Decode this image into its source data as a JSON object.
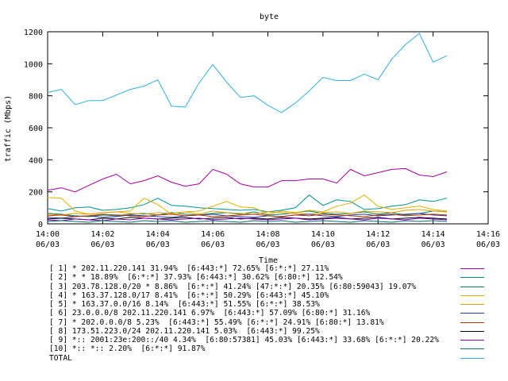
{
  "chart_data": {
    "type": "line",
    "title": "byte",
    "ylabel": "traffic (Mbps)",
    "xlabel": "Time",
    "ylim": [
      0,
      1200
    ],
    "xlim": [
      "2012-06-03 14:00",
      "2012-06-03 14:16"
    ],
    "y_ticks": [
      "0",
      "200",
      "400",
      "600",
      "800",
      "1000",
      "1200"
    ],
    "x_ticks": [
      {
        "time": "14:00",
        "date": "06/03"
      },
      {
        "time": "14:02",
        "date": "06/03"
      },
      {
        "time": "14:04",
        "date": "06/03"
      },
      {
        "time": "14:06",
        "date": "06/03"
      },
      {
        "time": "14:08",
        "date": "06/03"
      },
      {
        "time": "14:10",
        "date": "06/03"
      },
      {
        "time": "14:12",
        "date": "06/03"
      },
      {
        "time": "14:14",
        "date": "06/03"
      },
      {
        "time": "14:16",
        "date": "06/03"
      }
    ],
    "grid": false,
    "legend_position": "bottom",
    "x": [
      "14:00:00",
      "14:00:30",
      "14:01:00",
      "14:01:30",
      "14:02:00",
      "14:02:30",
      "14:03:00",
      "14:03:30",
      "14:04:00",
      "14:04:30",
      "14:05:00",
      "14:05:30",
      "14:06:00",
      "14:06:30",
      "14:07:00",
      "14:07:30",
      "14:08:00",
      "14:08:30",
      "14:09:00",
      "14:09:30",
      "14:10:00",
      "14:10:30",
      "14:11:00",
      "14:11:30",
      "14:12:00",
      "14:12:30",
      "14:13:00",
      "14:13:30",
      "14:14:00",
      "14:14:30"
    ],
    "series": [
      {
        "name": "[ 1] * 202.11.220.141 31.94%  [6:443:*] 72.65% [6:*:*] 27.11%",
        "color": "#a000a0",
        "values": [
          210,
          225,
          200,
          240,
          280,
          310,
          250,
          270,
          300,
          260,
          235,
          250,
          340,
          310,
          250,
          230,
          230,
          270,
          270,
          280,
          280,
          255,
          340,
          300,
          320,
          340,
          345,
          305,
          295,
          325
        ]
      },
      {
        "name": "[ 2] * * 18.89%  [6:*:*] 37.93% [6:443:*] 30.62% [6:80:*] 12.54%",
        "color": "#009090",
        "values": [
          95,
          80,
          100,
          105,
          85,
          90,
          100,
          120,
          160,
          115,
          110,
          100,
          95,
          90,
          85,
          90,
          75,
          85,
          100,
          180,
          115,
          150,
          140,
          90,
          95,
          110,
          120,
          150,
          140,
          160
        ]
      },
      {
        "name": "[ 3] 203.78.128.0/20 * 8.86%  [6:*:*] 41.24% [47:*:*] 20.35% [6:80:59043] 19.07%",
        "color": "#008060",
        "values": [
          65,
          60,
          50,
          45,
          55,
          50,
          60,
          65,
          55,
          70,
          60,
          55,
          65,
          70,
          60,
          75,
          55,
          60,
          70,
          80,
          65,
          60,
          65,
          75,
          60,
          70,
          55,
          65,
          80,
          75
        ]
      },
      {
        "name": "[ 4] * 163.37.128.0/17 8.41%  [6:*:*] 50.29% [6:443:*] 45.10%",
        "color": "#e0b000",
        "values": [
          165,
          160,
          80,
          60,
          70,
          75,
          80,
          160,
          120,
          60,
          75,
          80,
          110,
          140,
          105,
          100,
          60,
          80,
          70,
          85,
          75,
          110,
          130,
          180,
          110,
          90,
          100,
          110,
          90,
          80
        ]
      },
      {
        "name": "[ 5] * 163.37.0.0/16 8.14%  [6:443:*] 51.55% [6:*:*] 38.53%",
        "color": "#e0a000",
        "values": [
          60,
          55,
          65,
          60,
          70,
          75,
          65,
          60,
          70,
          65,
          75,
          60,
          80,
          70,
          65,
          60,
          75,
          70,
          65,
          60,
          70,
          75,
          65,
          80,
          75,
          70,
          85,
          90,
          80,
          75
        ]
      },
      {
        "name": "[ 6] 23.0.0.0/8 202.11.220.141 6.97%  [6:443:*] 57.09% [6:80:*] 31.16%",
        "color": "#2040a0",
        "values": [
          40,
          35,
          45,
          50,
          40,
          45,
          55,
          50,
          45,
          40,
          50,
          55,
          60,
          50,
          45,
          40,
          50,
          45,
          55,
          60,
          50,
          45,
          55,
          60,
          50,
          55,
          60,
          65,
          55,
          50
        ]
      },
      {
        "name": "[ 7] * 202.0.0.0/8 5.23%  [6:443:*] 55.49% [6:*:*] 24.91% [6:80:*] 13.81%",
        "color": "#c03000",
        "values": [
          50,
          55,
          45,
          50,
          60,
          55,
          50,
          45,
          55,
          60,
          50,
          55,
          45,
          50,
          55,
          60,
          50,
          45,
          55,
          50,
          60,
          55,
          50,
          45,
          55,
          60,
          50,
          55,
          60,
          55
        ]
      },
      {
        "name": "[ 8] 173.51.223.0/24 202.11.220.141 5.03%  [6:443:*] 99.25%",
        "color": "#000000",
        "values": [
          30,
          35,
          30,
          25,
          35,
          30,
          40,
          35,
          30,
          35,
          40,
          30,
          35,
          40,
          30,
          35,
          30,
          40,
          35,
          30,
          35,
          40,
          30,
          35,
          40,
          30,
          35,
          40,
          35,
          30
        ]
      },
      {
        "name": "[ 9] *:: 2001:23e:200::/40 4.34%  [6:80:57381] 45.03% [6:443:*] 33.68% [6:*:*] 20.22%",
        "color": "#8000c0",
        "values": [
          25,
          20,
          30,
          25,
          20,
          30,
          25,
          35,
          30,
          25,
          30,
          35,
          25,
          30,
          35,
          30,
          25,
          30,
          35,
          25,
          30,
          35,
          30,
          25,
          35,
          30,
          25,
          35,
          30,
          25
        ]
      },
      {
        "name": "[10] *:: *:: 2.20%  [6:*:*] 91.87%",
        "color": "#007070",
        "values": [
          15,
          20,
          15,
          10,
          20,
          15,
          10,
          20,
          15,
          20,
          10,
          15,
          20,
          15,
          10,
          20,
          15,
          20,
          10,
          15,
          20,
          15,
          10,
          20,
          15,
          10,
          20,
          15,
          20,
          15
        ]
      },
      {
        "name": "TOTAL",
        "color": "#30b0e0",
        "values": [
          820,
          840,
          745,
          770,
          770,
          805,
          840,
          860,
          900,
          735,
          730,
          880,
          995,
          885,
          790,
          800,
          740,
          695,
          755,
          830,
          915,
          895,
          895,
          935,
          900,
          1030,
          1120,
          1190,
          1010,
          1050
        ]
      }
    ]
  }
}
